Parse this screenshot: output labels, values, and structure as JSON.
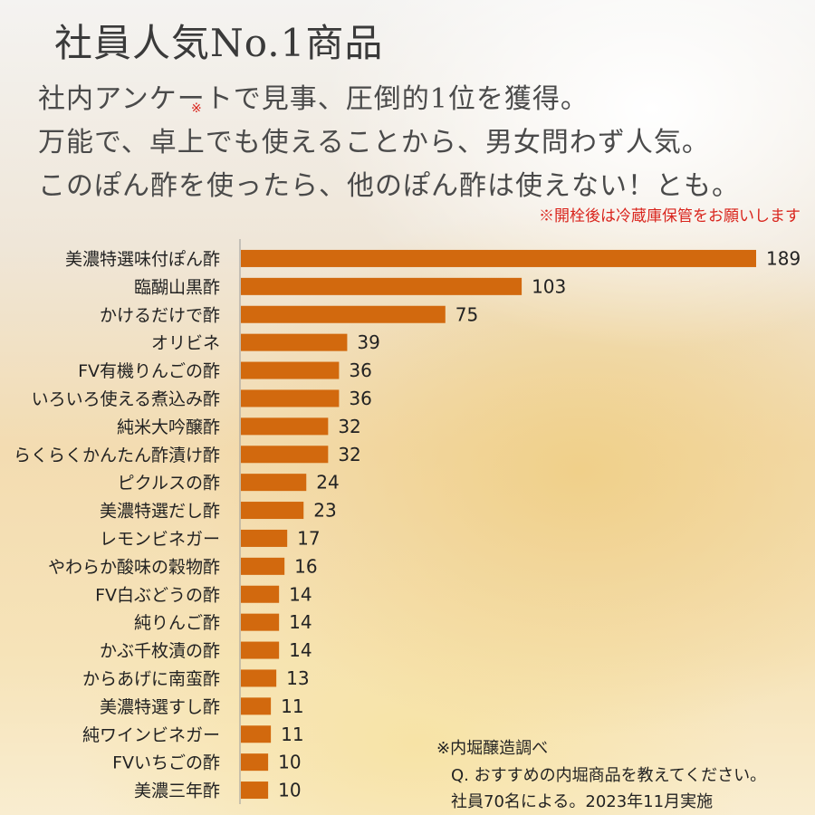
{
  "header": {
    "title": "社員人気No.1商品",
    "lines": [
      "社内アンケートで見事、圧倒的1位を獲得。",
      "万能で、卓上でも使えることから、男女問わず人気。",
      "このぽん酢を使ったら、他のぽん酢は使えない！とも。"
    ],
    "asterisk": "※",
    "note": "※開栓後は冷蔵庫保管をお願いします"
  },
  "source": {
    "line1": "※内堀醸造調べ",
    "line2": "Q. おすすめの内堀商品を教えてください。",
    "line3": "社員70名による。2023年11月実施"
  },
  "colors": {
    "bar": "#d2690e",
    "title_text": "#3a3a3a",
    "note_text": "#d9241c"
  },
  "chart_data": {
    "type": "bar",
    "orientation": "horizontal",
    "categories": [
      "美濃特選味付ぽん酢",
      "臨醐山黒酢",
      "かけるだけで酢",
      "オリビネ",
      "FV有機りんごの酢",
      "いろいろ使える煮込み酢",
      "純米大吟醸酢",
      "らくらくかんたん酢漬け酢",
      "ピクルスの酢",
      "美濃特選だし酢",
      "レモンビネガー",
      "やわらか酸味の穀物酢",
      "FV白ぶどうの酢",
      "純りんご酢",
      "かぶ千枚漬の酢",
      "からあげに南蛮酢",
      "美濃特選すし酢",
      "純ワインビネガー",
      "FVいちごの酢",
      "美濃三年酢"
    ],
    "values": [
      189,
      103,
      75,
      39,
      36,
      36,
      32,
      32,
      24,
      23,
      17,
      16,
      14,
      14,
      14,
      13,
      11,
      11,
      10,
      10
    ],
    "xlim": [
      0,
      189
    ],
    "grid": false,
    "legend": "none",
    "data_labels": true
  }
}
